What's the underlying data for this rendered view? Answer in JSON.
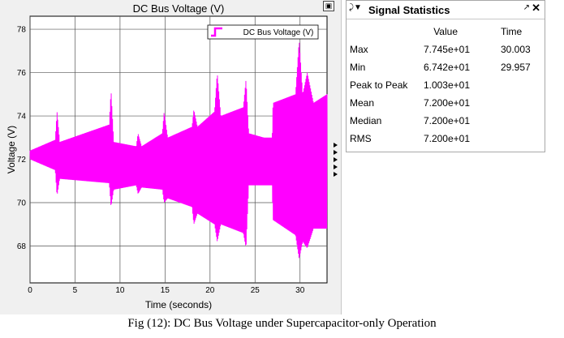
{
  "scope": {
    "chart_data": {
      "type": "line",
      "title": "DC Bus Voltage (V)",
      "xlabel": "Time (seconds)",
      "ylabel": "Voltage (V)",
      "xlim": [
        0,
        33
      ],
      "ylim": [
        66.3,
        78.6
      ],
      "xticks": [
        "0",
        "5",
        "10",
        "15",
        "20",
        "25",
        "30"
      ],
      "yticks": [
        "68",
        "70",
        "72",
        "74",
        "76",
        "78"
      ],
      "grid": true,
      "legend_position": "top-right",
      "series": [
        {
          "name": "DC Bus Voltage (V)",
          "color": "#ff00ff",
          "envelope_upper": [
            [
              0,
              72.4
            ],
            [
              2.8,
              72.9
            ],
            [
              3.0,
              74.2
            ],
            [
              3.3,
              72.8
            ],
            [
              8.8,
              73.6
            ],
            [
              9.0,
              75.2
            ],
            [
              9.3,
              72.8
            ],
            [
              11.8,
              72.6
            ],
            [
              12.0,
              73.2
            ],
            [
              12.4,
              72.6
            ],
            [
              14.7,
              73.2
            ],
            [
              14.9,
              74.2
            ],
            [
              15.3,
              73.0
            ],
            [
              18.0,
              73.5
            ],
            [
              18.2,
              74.3
            ],
            [
              18.6,
              73.5
            ],
            [
              20.5,
              74.2
            ],
            [
              20.8,
              76.0
            ],
            [
              21.2,
              74.0
            ],
            [
              23.7,
              74.4
            ],
            [
              24.0,
              75.7
            ],
            [
              24.3,
              73.2
            ],
            [
              26.0,
              73.0
            ],
            [
              26.9,
              73.0
            ],
            [
              27.0,
              74.6
            ],
            [
              29.5,
              75.0
            ],
            [
              29.9,
              77.5
            ],
            [
              30.3,
              75.0
            ],
            [
              30.8,
              76.0
            ],
            [
              31.5,
              74.6
            ],
            [
              33.0,
              75.0
            ]
          ],
          "envelope_lower": [
            [
              0,
              72.0
            ],
            [
              2.8,
              71.5
            ],
            [
              3.0,
              70.3
            ],
            [
              3.3,
              71.1
            ],
            [
              8.8,
              70.9
            ],
            [
              9.0,
              69.8
            ],
            [
              9.3,
              70.6
            ],
            [
              11.8,
              70.8
            ],
            [
              12.0,
              70.4
            ],
            [
              12.4,
              70.7
            ],
            [
              14.7,
              70.6
            ],
            [
              14.9,
              70.0
            ],
            [
              15.3,
              70.2
            ],
            [
              18.0,
              69.8
            ],
            [
              18.2,
              69.0
            ],
            [
              18.6,
              69.5
            ],
            [
              20.5,
              69.0
            ],
            [
              20.8,
              68.2
            ],
            [
              21.2,
              69.0
            ],
            [
              23.7,
              68.6
            ],
            [
              24.0,
              67.9
            ],
            [
              24.3,
              70.8
            ],
            [
              26.0,
              70.8
            ],
            [
              26.9,
              70.8
            ],
            [
              27.0,
              69.2
            ],
            [
              29.5,
              68.5
            ],
            [
              29.9,
              67.4
            ],
            [
              30.3,
              68.2
            ],
            [
              30.8,
              67.9
            ],
            [
              31.5,
              68.8
            ],
            [
              33.0,
              68.8
            ]
          ]
        }
      ]
    }
  },
  "stats_panel": {
    "title": "Signal Statistics",
    "menu_icon": "menu-arrows-icon",
    "pin_icon": "pin-icon",
    "close_icon": "close-icon",
    "columns": {
      "value": "Value",
      "time": "Time"
    },
    "rows": [
      {
        "label": "Max",
        "value": "7.745e+01",
        "time": "30.003"
      },
      {
        "label": "Min",
        "value": "6.742e+01",
        "time": "29.957"
      },
      {
        "label": "Peak to Peak",
        "value": "1.003e+01",
        "time": ""
      },
      {
        "label": "Mean",
        "value": "7.200e+01",
        "time": ""
      },
      {
        "label": "Median",
        "value": "7.200e+01",
        "time": ""
      },
      {
        "label": "RMS",
        "value": "7.200e+01",
        "time": ""
      }
    ]
  },
  "caption": "Fig (12): DC Bus Voltage under Supercapacitor-only Operation"
}
